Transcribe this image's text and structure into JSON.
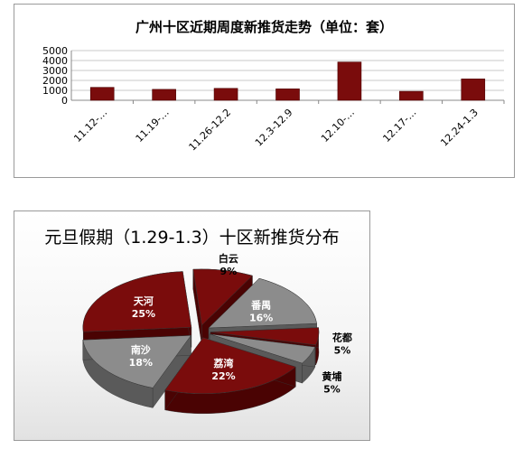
{
  "colors": {
    "bar": "#7a0c0c",
    "bar_edge": "#4d0000",
    "pie_dark_red": "#7a0c0c",
    "pie_dark_red_side": "#4a0303",
    "pie_grey": "#8c8c8c",
    "pie_grey_side": "#5a5a5a",
    "grid": "#c8c8c8"
  },
  "chart_data": [
    {
      "type": "bar",
      "title": "广州十区近期周度新推货走势（单位：套）",
      "categories": [
        "11.12-…",
        "11.19-…",
        "11.26-12.2",
        "12.3-12.9",
        "12.10-…",
        "12.17-…",
        "12.24-1.3"
      ],
      "values": [
        1300,
        1100,
        1200,
        1150,
        3850,
        900,
        2150
      ],
      "yticks": [
        "5000",
        "4000",
        "3000",
        "2000",
        "1000",
        "0"
      ],
      "ylim": [
        0,
        5000
      ],
      "grid": true,
      "legend": "none",
      "xlabel": "",
      "ylabel": ""
    },
    {
      "type": "pie",
      "title": "元旦假期（1.29-1.3）十区新推货分布",
      "style": "3d-exploded",
      "slices": [
        {
          "name": "白云",
          "value": 9,
          "label": "9%",
          "color_key": "pie_dark_red"
        },
        {
          "name": "番禺",
          "value": 16,
          "label": "16%",
          "color_key": "pie_grey"
        },
        {
          "name": "花都",
          "value": 5,
          "label": "5%",
          "color_key": "pie_dark_red"
        },
        {
          "name": "黄埔",
          "value": 5,
          "label": "5%",
          "color_key": "pie_grey"
        },
        {
          "name": "荔湾",
          "value": 22,
          "label": "22%",
          "color_key": "pie_dark_red"
        },
        {
          "name": "南沙",
          "value": 18,
          "label": "18%",
          "color_key": "pie_grey"
        },
        {
          "name": "天河",
          "value": 25,
          "label": "25%",
          "color_key": "pie_dark_red"
        }
      ],
      "legend": "none"
    }
  ]
}
